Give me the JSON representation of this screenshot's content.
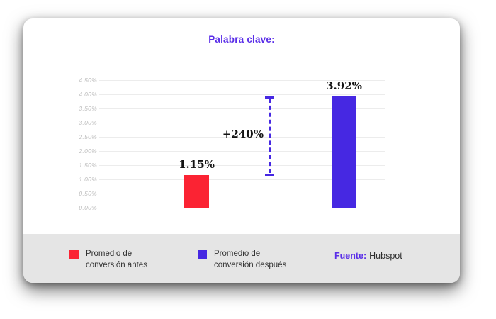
{
  "title": "Palabra clave:",
  "chart_data": {
    "type": "bar",
    "categories": [
      "Promedio de conversión antes",
      "Promedio de conversión después"
    ],
    "values": [
      1.15,
      3.92
    ],
    "value_labels": [
      "1.15%",
      "3.92%"
    ],
    "bar_colors": [
      "#fb2333",
      "#4628e2"
    ],
    "annotation": {
      "label": "+240%",
      "meaning": "difference between bars"
    },
    "y_ticks": [
      "4.50%",
      "4.00%",
      "3.50%",
      "3.00%",
      "2.50%",
      "2.00%",
      "1.50%",
      "1.00%",
      "0.50%",
      "0.00%"
    ],
    "ylim": [
      0,
      4.5
    ],
    "xlabel": "",
    "ylabel": "",
    "grid": true,
    "legend_position": "bottom"
  },
  "legend": {
    "items": [
      {
        "label": "Promedio de conversión antes",
        "color_key": "bar_red"
      },
      {
        "label": "Promedio de conversión después",
        "color_key": "bar_blue"
      }
    ]
  },
  "source": {
    "label": "Fuente:",
    "value": "Hubspot"
  },
  "colors": {
    "accent_purple": "#5a2ee8",
    "bar_red": "#fb2333",
    "bar_blue": "#4628e2",
    "footer_bg": "#e5e5e5",
    "gridline": "#ececec",
    "tick_text": "#bdbdbd",
    "value_text": "#141414"
  }
}
